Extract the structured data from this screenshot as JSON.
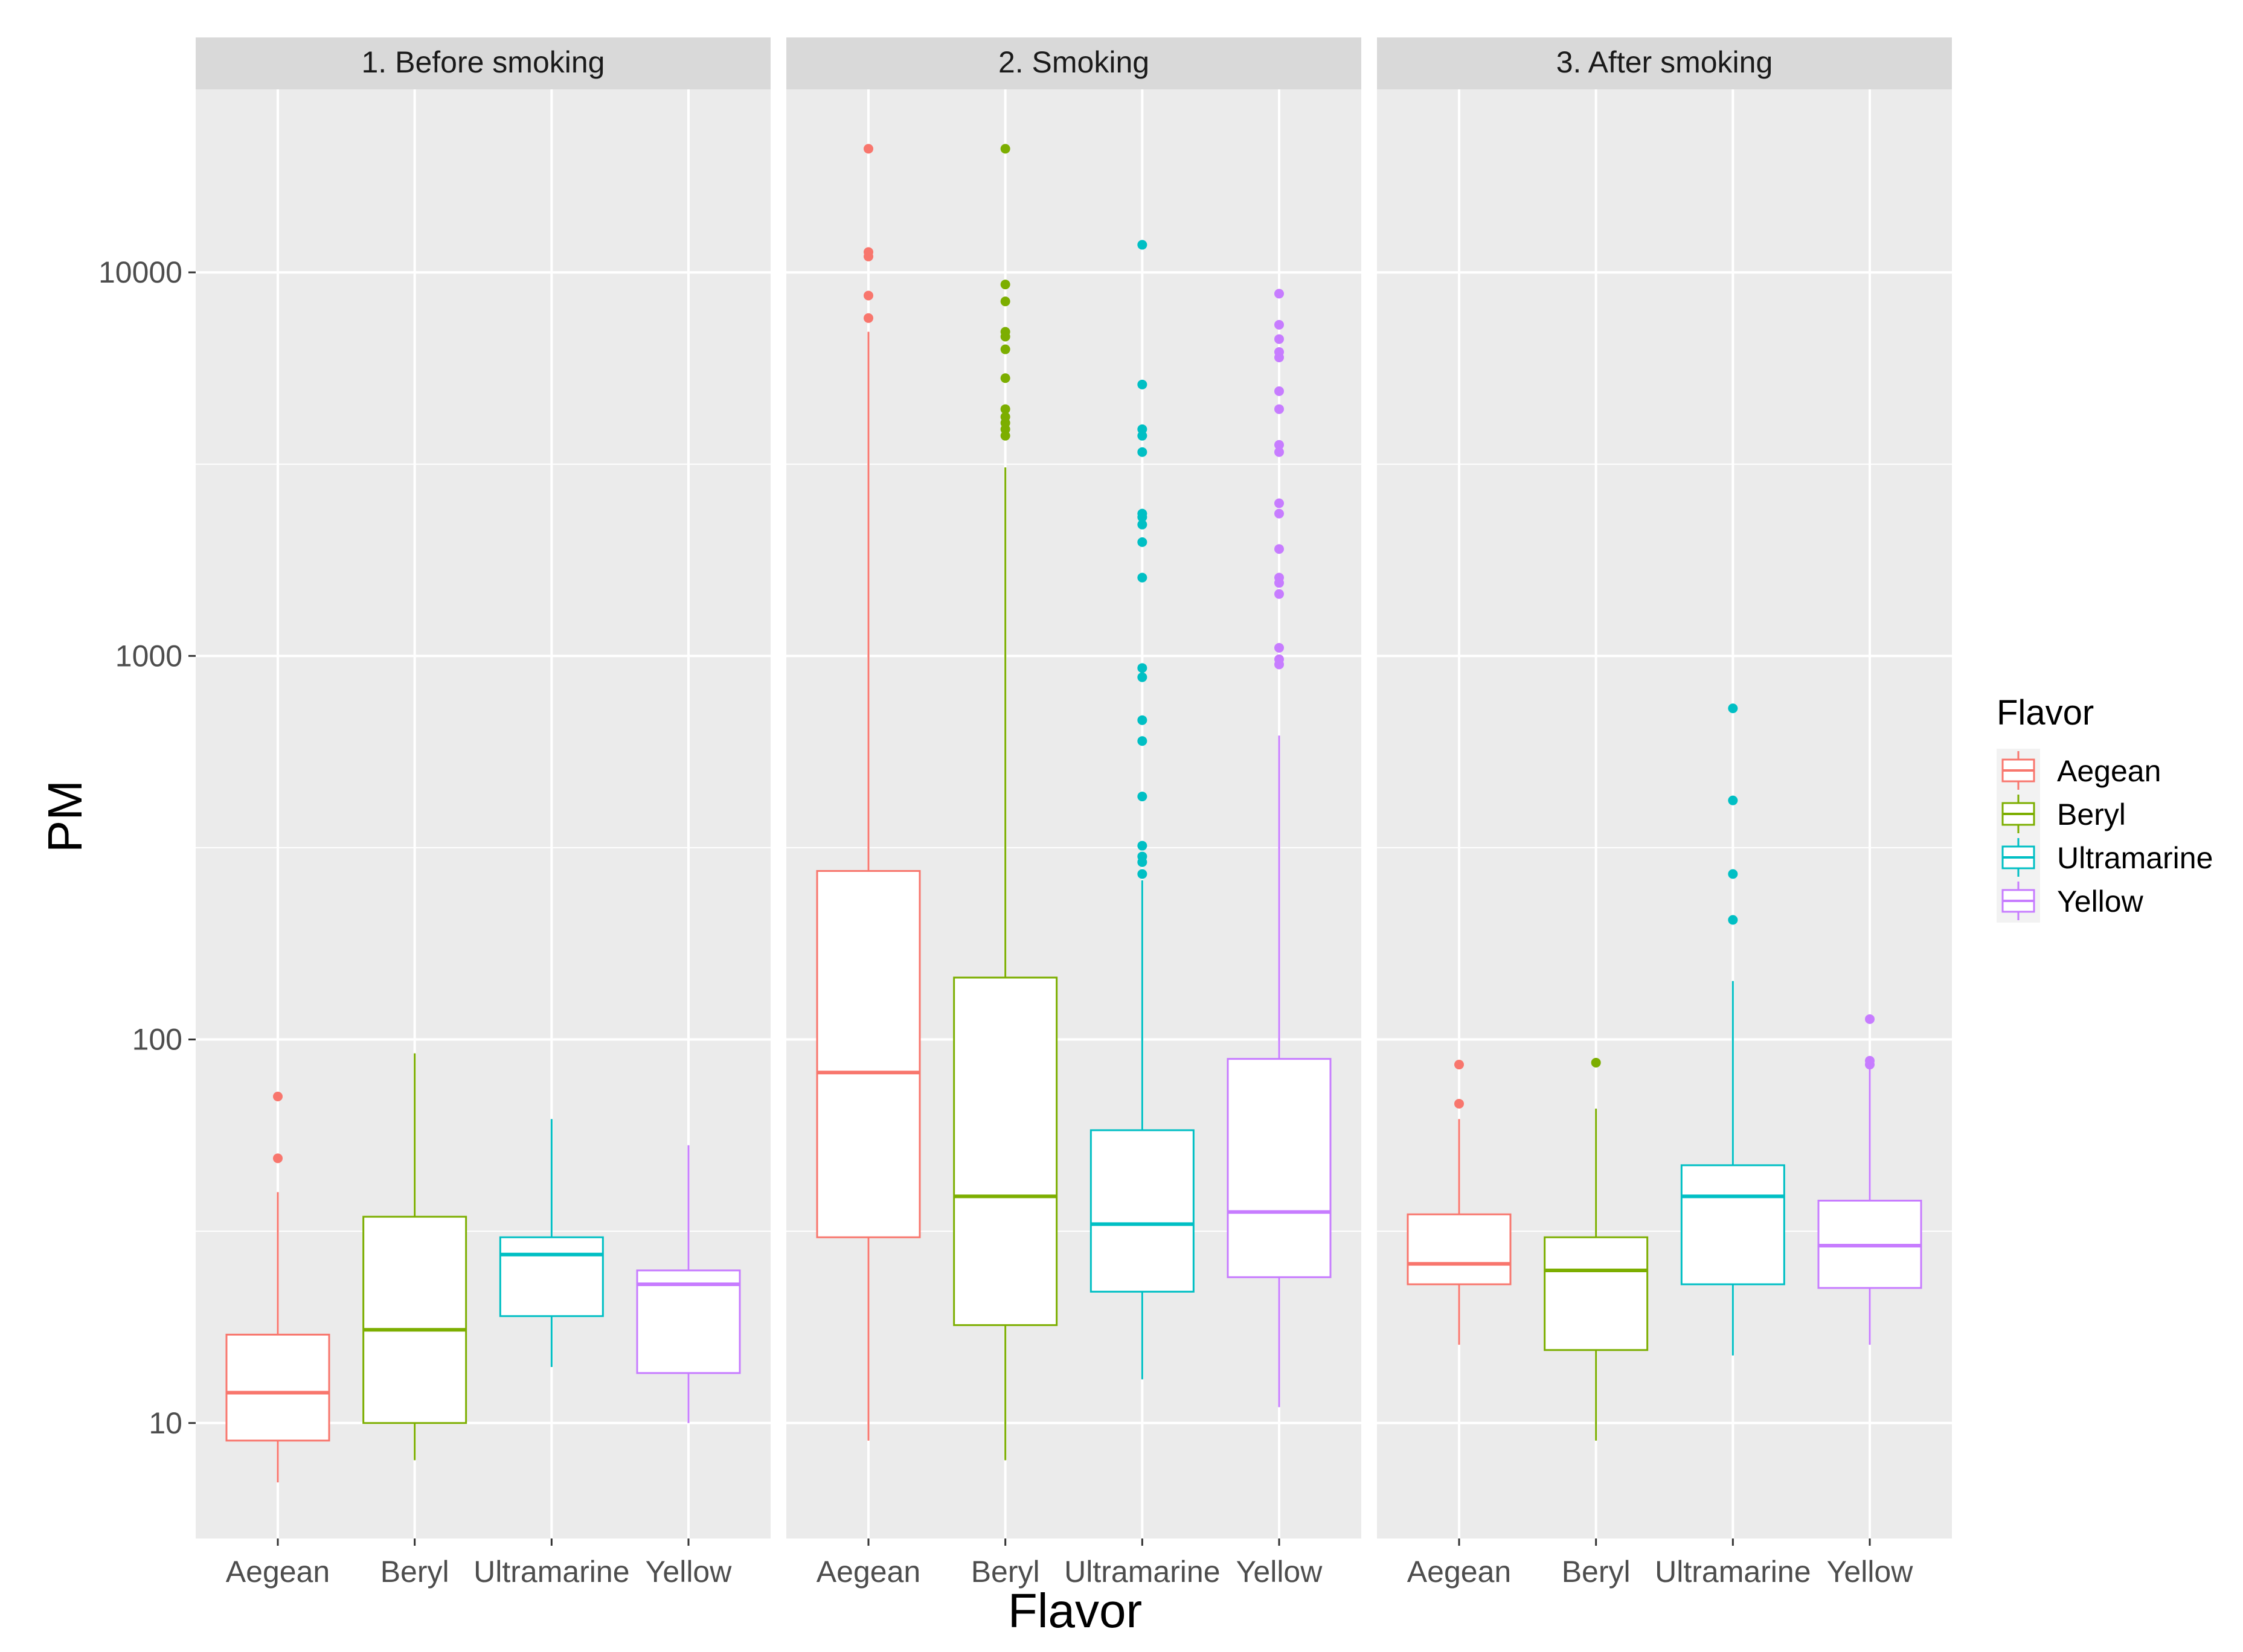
{
  "chart_data": {
    "type": "boxplot",
    "scale_y": "log10",
    "ylim": [
      5,
      30000
    ],
    "xlabel": "Flavor",
    "ylabel": "PM",
    "y_ticks": [
      10,
      100,
      1000,
      10000
    ],
    "y_tick_labels": [
      "10",
      "100",
      "1000",
      "10000"
    ],
    "categories": [
      "Aegean",
      "Beryl",
      "Ultramarine",
      "Yellow"
    ],
    "legend": {
      "title": "Flavor",
      "entries": [
        "Aegean",
        "Beryl",
        "Ultramarine",
        "Yellow"
      ],
      "colors": [
        "#F8766D",
        "#7CAE00",
        "#00BFC4",
        "#C77CFF"
      ]
    },
    "panels": [
      {
        "title": "1. Before smoking",
        "boxes": [
          {
            "flavor": "Aegean",
            "low": 7,
            "q1": 9,
            "median": 12,
            "q3": 17,
            "high": 40,
            "outliers": [
              49,
              71
            ]
          },
          {
            "flavor": "Beryl",
            "low": 8,
            "q1": 10,
            "median": 17.5,
            "q3": 34.5,
            "high": 92,
            "outliers": []
          },
          {
            "flavor": "Ultramarine",
            "low": 14,
            "q1": 19,
            "median": 27.5,
            "q3": 30.5,
            "high": 62,
            "outliers": []
          },
          {
            "flavor": "Yellow",
            "low": 10,
            "q1": 13.5,
            "median": 23,
            "q3": 25,
            "high": 53,
            "outliers": []
          }
        ]
      },
      {
        "title": "2. Smoking",
        "boxes": [
          {
            "flavor": "Aegean",
            "low": 9,
            "q1": 30.5,
            "median": 82,
            "q3": 275,
            "high": 7000,
            "outliers": [
              7600,
              8700,
              11000,
              11300,
              21000
            ]
          },
          {
            "flavor": "Beryl",
            "low": 8,
            "q1": 18,
            "median": 39,
            "q3": 145,
            "high": 3100,
            "outliers": [
              3750,
              3900,
              4050,
              4200,
              4400,
              5300,
              6300,
              6800,
              7000,
              8400,
              9300,
              21000
            ]
          },
          {
            "flavor": "Ultramarine",
            "low": 13,
            "q1": 22,
            "median": 33,
            "q3": 58,
            "high": 260,
            "outliers": [
              270,
              290,
              300,
              320,
              430,
              600,
              680,
              880,
              930,
              1600,
              1980,
              2200,
              2300,
              2350,
              3400,
              3750,
              3900,
              5100,
              11800
            ]
          },
          {
            "flavor": "Yellow",
            "low": 11,
            "q1": 24,
            "median": 35.5,
            "q3": 89,
            "high": 620,
            "outliers": [
              950,
              980,
              1050,
              1450,
              1550,
              1600,
              1900,
              2350,
              2500,
              3400,
              3550,
              4400,
              4900,
              6000,
              6200,
              6700,
              7300,
              8800
            ]
          }
        ]
      },
      {
        "title": "3. After smoking",
        "boxes": [
          {
            "flavor": "Aegean",
            "low": 16,
            "q1": 23,
            "median": 26,
            "q3": 35,
            "high": 62,
            "outliers": [
              68,
              86
            ]
          },
          {
            "flavor": "Beryl",
            "low": 9,
            "q1": 15.5,
            "median": 25,
            "q3": 30.5,
            "high": 66,
            "outliers": [
              87
            ]
          },
          {
            "flavor": "Ultramarine",
            "low": 15,
            "q1": 23,
            "median": 39,
            "q3": 47,
            "high": 142,
            "outliers": [
              205,
              270,
              420,
              730
            ]
          },
          {
            "flavor": "Yellow",
            "low": 16,
            "q1": 22.5,
            "median": 29,
            "q3": 38,
            "high": 84,
            "outliers": [
              86,
              88,
              113
            ]
          }
        ]
      }
    ]
  }
}
